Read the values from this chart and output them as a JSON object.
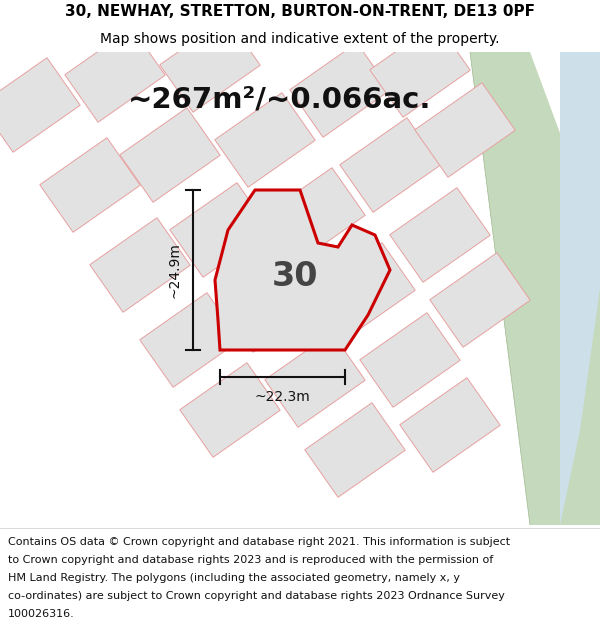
{
  "title_line1": "30, NEWHAY, STRETTON, BURTON-ON-TRENT, DE13 0PF",
  "title_line2": "Map shows position and indicative extent of the property.",
  "area_text": "~267m²/~0.066ac.",
  "label_number": "30",
  "dim_vertical": "~24.9m",
  "dim_horizontal": "~22.3m",
  "footer_lines": [
    "Contains OS data © Crown copyright and database right 2021. This information is subject",
    "to Crown copyright and database rights 2023 and is reproduced with the permission of",
    "HM Land Registry. The polygons (including the associated geometry, namely x, y",
    "co-ordinates) are subject to Crown copyright and database rights 2023 Ordnance Survey",
    "100026316."
  ],
  "bg_color": "#ebebeb",
  "parcel_fill": "#e2e2e2",
  "parcel_edge": "#e8a0a0",
  "plot_fill": "#e2e2e2",
  "plot_edge": "#cc0000",
  "green_color": "#c5d9bc",
  "water_color": "#cde0ea",
  "white_road": "#ffffff",
  "dim_color": "#111111",
  "label_color": "#444444",
  "title_fontsize": 11,
  "subtitle_fontsize": 10,
  "area_fontsize": 21,
  "label_fontsize": 24,
  "dim_fontsize": 10,
  "footer_fontsize": 8
}
